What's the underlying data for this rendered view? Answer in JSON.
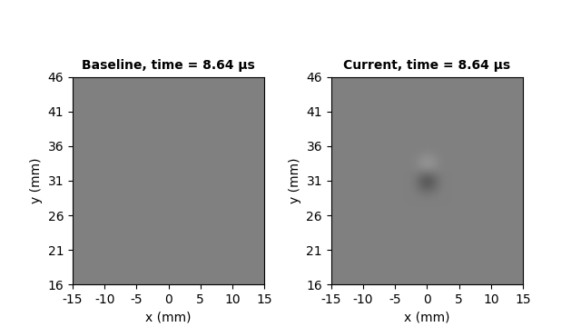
{
  "chart_data": [
    {
      "type": "heatmap",
      "title": "Baseline, time = 8.64 μs",
      "x_label": "x (mm)",
      "y_label": "y (mm)",
      "xlim": [
        -15,
        15
      ],
      "xticks": [
        -15,
        -10,
        -5,
        0,
        5,
        10,
        15
      ],
      "ylim": [
        16,
        46
      ],
      "yticks": [
        16,
        21,
        26,
        31,
        36,
        41,
        46
      ],
      "color": "gray",
      "color_range": [
        -1,
        1
      ],
      "cells": [
        [
          0,
          0,
          0,
          0,
          0,
          0,
          0,
          0,
          0,
          0,
          0,
          0,
          0,
          0,
          0
        ],
        [
          0,
          0,
          0,
          0,
          0,
          0,
          0,
          0,
          0,
          0,
          0,
          0,
          0,
          0,
          0
        ],
        [
          0,
          0,
          0,
          0,
          0,
          0,
          0,
          0,
          0,
          0,
          0,
          0,
          0,
          0,
          0
        ],
        [
          0,
          0,
          0,
          0,
          0,
          0,
          0,
          0,
          0,
          0,
          0,
          0,
          0,
          0,
          0
        ],
        [
          0,
          0,
          0,
          0,
          0,
          0,
          0,
          0,
          0,
          0,
          0,
          0,
          0,
          0,
          0
        ],
        [
          0,
          0,
          0,
          0,
          0,
          0,
          0,
          0,
          0,
          0,
          0,
          0,
          0,
          0,
          0
        ],
        [
          0,
          0,
          0,
          0,
          0,
          0,
          0,
          0,
          0,
          0,
          0,
          0,
          0,
          0,
          0
        ],
        [
          0,
          0,
          0,
          0,
          0,
          0,
          0,
          0,
          0,
          0,
          0,
          0,
          0,
          0,
          0
        ],
        [
          0,
          0,
          0,
          0,
          0,
          0,
          0,
          0,
          0,
          0,
          0,
          0,
          0,
          0,
          0
        ],
        [
          0,
          0,
          0,
          0,
          0,
          0,
          0,
          0,
          0,
          0,
          0,
          0,
          0,
          0,
          0
        ],
        [
          0,
          0,
          0,
          0,
          0,
          0,
          0,
          0,
          0,
          0,
          0,
          0,
          0,
          0,
          0
        ],
        [
          0,
          0,
          0,
          0,
          0,
          0,
          0,
          0,
          0,
          0,
          0,
          0,
          0,
          0,
          0
        ],
        [
          0,
          0,
          0,
          0,
          0,
          0,
          0,
          0,
          0,
          0,
          0,
          0,
          0,
          0,
          0
        ],
        [
          0,
          0,
          0,
          0,
          0,
          0,
          0,
          0,
          0,
          0,
          0,
          0,
          0,
          0,
          0
        ],
        [
          0,
          0,
          0,
          0,
          0,
          0,
          0,
          0,
          0,
          0,
          0,
          0,
          0,
          0,
          0
        ]
      ]
    },
    {
      "type": "heatmap",
      "title": "Current, time = 8.64 μs",
      "x_label": "x (mm)",
      "y_label": "y (mm)",
      "xlim": [
        -15,
        15
      ],
      "xticks": [
        -15,
        -10,
        -5,
        0,
        5,
        10,
        15
      ],
      "ylim": [
        16,
        46
      ],
      "yticks": [
        16,
        21,
        26,
        31,
        36,
        41,
        46
      ],
      "color": "gray",
      "color_range": [
        -1,
        1
      ],
      "cells": [
        [
          0,
          0,
          0,
          0,
          0,
          0,
          0,
          0,
          0,
          0,
          0,
          0,
          0,
          0,
          0
        ],
        [
          0,
          0,
          0,
          0,
          0,
          0,
          0,
          0,
          0,
          0,
          0,
          0,
          0,
          0,
          0
        ],
        [
          0,
          0,
          0,
          0,
          0,
          0,
          0,
          0,
          0,
          0,
          0,
          0,
          0,
          0,
          0
        ],
        [
          0,
          0,
          0,
          0,
          0,
          0,
          0,
          0,
          0,
          0,
          0,
          0,
          0,
          0,
          0
        ],
        [
          0,
          0,
          0,
          0,
          0,
          0,
          0,
          0,
          0,
          0,
          0,
          0,
          0,
          0,
          0
        ],
        [
          0,
          0,
          0,
          0,
          0,
          0,
          0,
          0,
          0,
          0,
          0,
          0,
          0,
          0,
          0
        ],
        [
          0,
          0,
          0,
          0,
          0,
          0,
          0,
          0,
          0,
          0,
          0,
          0,
          0,
          0,
          0
        ],
        [
          0,
          0,
          0,
          0,
          0,
          0,
          0,
          -0.7,
          0,
          0,
          0,
          0,
          0,
          0,
          0
        ],
        [
          0,
          0,
          0,
          0,
          0,
          0,
          0,
          0.4,
          0,
          0,
          0,
          0,
          0,
          0,
          0
        ],
        [
          0,
          0,
          0,
          0,
          0,
          0,
          0,
          0,
          0,
          0,
          0,
          0,
          0,
          0,
          0
        ],
        [
          0,
          0,
          0,
          0,
          0,
          0,
          0,
          0,
          0,
          0,
          0,
          0,
          0,
          0,
          0
        ],
        [
          0,
          0,
          0,
          0,
          0,
          0,
          0,
          0,
          0,
          0,
          0,
          0,
          0,
          0,
          0
        ],
        [
          0,
          0,
          0,
          0,
          0,
          0,
          0,
          0,
          0,
          0,
          0,
          0,
          0,
          0,
          0
        ],
        [
          0,
          0,
          0,
          0,
          0,
          0,
          0,
          0,
          0,
          0,
          0,
          0,
          0,
          0,
          0
        ],
        [
          0,
          0,
          0,
          0,
          0,
          0,
          0,
          0,
          0,
          0,
          0,
          0,
          0,
          0,
          0
        ]
      ]
    }
  ]
}
